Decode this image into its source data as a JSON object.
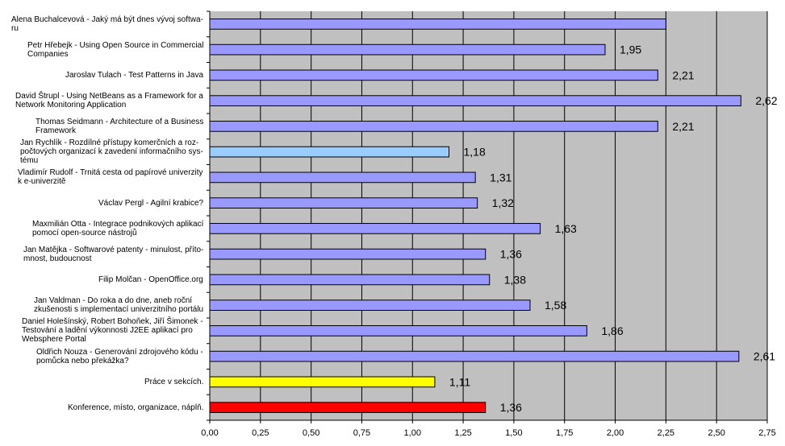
{
  "chart_data": {
    "type": "bar",
    "orientation": "horizontal",
    "title": "",
    "xlabel": "",
    "ylabel": "",
    "xlim": [
      0,
      2.75
    ],
    "x_ticks": [
      "0,00",
      "0,25",
      "0,50",
      "0,75",
      "1,00",
      "1,25",
      "1,50",
      "1,75",
      "2,00",
      "2,25",
      "2,50",
      "2,75"
    ],
    "grid": true,
    "plot_background": "#c0c0c0",
    "categories": [
      "Alena Buchalcevová - Jaký má být dnes vývoj softwa-\nru",
      "Petr Hřebejk - Using Open Source in Commercial\nCompanies",
      "Jaroslav Tulach - Test Patterns in Java",
      "David Štrupl - Using NetBeans as a Framework for a\nNetwork Monitoring Application",
      "Thomas Seidmann - Architecture of a Business\nFramework",
      "Jan Rychlík - Rozdílné přístupy komerčních a roz-\npočtových organizací k zavedení informačního sys-\ntému",
      "Vladimír Rudolf - Trnitá cesta od papírové univerzity\nk e-univerzitě",
      "Václav Pergl - Agilní krabice?",
      "Maxmilián Otta - Integrace podnikových aplikací\npomocí open-source nástrojů",
      "Jan Matějka - Softwarové patenty - minulost, příto-\nmnost, budoucnost",
      "Filip Molčan - OpenOffice.org",
      "Jan Valdman - Do roka a do dne, aneb roční\nzkušenosti s implementací univerzitního portálu",
      "Daniel Holešínský, Robert Bohoňek, Jiří Šimonek -\nTestování a ladění výkonnosti J2EE aplikací pro\nWebsphere Portal",
      "Oldřich Nouza - Generování zdrojového kódu -\npomůcka nebo překážka?",
      "Práce v sekcích.",
      "Konference, místo, organizace, náplň."
    ],
    "values": [
      2.25,
      1.95,
      2.21,
      2.62,
      2.21,
      1.18,
      1.31,
      1.32,
      1.63,
      1.36,
      1.38,
      1.58,
      1.86,
      2.61,
      1.11,
      1.36
    ],
    "value_labels": [
      "",
      "1,95",
      "2,21",
      "2,62",
      "2,21",
      "1,18",
      "1,31",
      "1,32",
      "1,63",
      "1,36",
      "1,38",
      "1,58",
      "1,86",
      "2,61",
      "1,11",
      "1,36"
    ],
    "bar_colors": [
      "#9999ff",
      "#9999ff",
      "#9999ff",
      "#9999ff",
      "#9999ff",
      "#99ccff",
      "#9999ff",
      "#9999ff",
      "#9999ff",
      "#9999ff",
      "#9999ff",
      "#9999ff",
      "#9999ff",
      "#9999ff",
      "#ffff00",
      "#ff0000"
    ]
  }
}
